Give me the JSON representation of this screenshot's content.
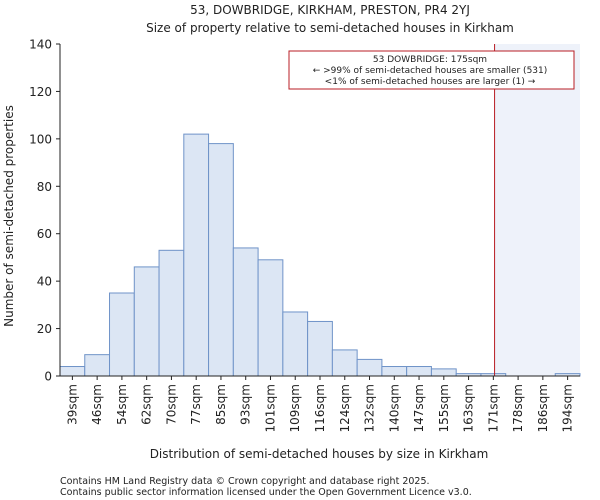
{
  "title_line1": "53, DOWBRIDGE, KIRKHAM, PRESTON, PR4 2YJ",
  "title_line2": "Size of property relative to semi-detached houses in Kirkham",
  "footer_line1": "Contains HM Land Registry data © Crown copyright and database right 2025.",
  "footer_line2": "Contains public sector information licensed under the Open Government Licence v3.0.",
  "colors": {
    "bar_fill": "#dce6f4",
    "bar_stroke": "#6f93c8",
    "marker_line": "#b81d24",
    "annotation_border": "#b81d24",
    "highlight_fill": "#eef2fa",
    "axis": "#222222"
  },
  "chart_data": {
    "type": "bar",
    "title": "Size of property relative to semi-detached houses in Kirkham",
    "xlabel": "Distribution of semi-detached houses by size in Kirkham",
    "ylabel": "Number of semi-detached properties",
    "ylim": [
      0,
      140
    ],
    "yticks": [
      0,
      20,
      40,
      60,
      80,
      100,
      120,
      140
    ],
    "categories": [
      "39sqm",
      "46sqm",
      "54sqm",
      "62sqm",
      "70sqm",
      "77sqm",
      "85sqm",
      "93sqm",
      "101sqm",
      "109sqm",
      "116sqm",
      "124sqm",
      "132sqm",
      "140sqm",
      "147sqm",
      "155sqm",
      "163sqm",
      "171sqm",
      "178sqm",
      "186sqm",
      "194sqm"
    ],
    "values": [
      4,
      9,
      35,
      46,
      53,
      102,
      98,
      54,
      49,
      27,
      23,
      11,
      7,
      4,
      4,
      3,
      1,
      1,
      0,
      0,
      1
    ],
    "marker": {
      "value_sqm": 175,
      "category_position": 17.55
    },
    "annotation": {
      "line1": "53 DOWBRIDGE: 175sqm",
      "line2": "← >99% of semi-detached houses are smaller (531)",
      "line3": "<1% of semi-detached houses are larger (1) →"
    },
    "grid": false
  }
}
